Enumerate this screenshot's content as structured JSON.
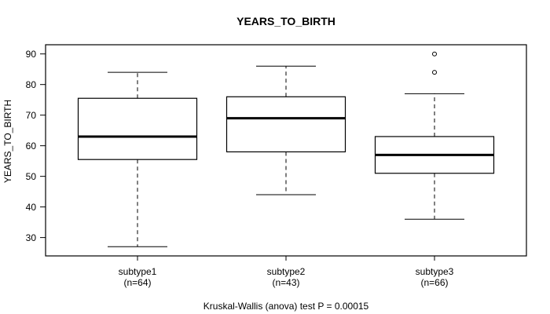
{
  "chart_data": {
    "type": "boxplot",
    "title": "YEARS_TO_BIRTH",
    "ylabel": "YEARS_TO_BIRTH",
    "xlabel": "",
    "caption": "Kruskal-Wallis (anova) test P = 0.00015",
    "ylim": [
      24,
      93
    ],
    "yticks": [
      30,
      40,
      50,
      60,
      70,
      80,
      90
    ],
    "grid": false,
    "legend": "none",
    "groups": [
      {
        "label": "subtype1",
        "sublabel": "(n=64)",
        "n": 64,
        "lower_whisker": 27,
        "q1": 55.5,
        "median": 63,
        "q3": 75.5,
        "upper_whisker": 84,
        "outliers": []
      },
      {
        "label": "subtype2",
        "sublabel": "(n=43)",
        "n": 43,
        "lower_whisker": 44,
        "q1": 58,
        "median": 69,
        "q3": 76,
        "upper_whisker": 86,
        "outliers": []
      },
      {
        "label": "subtype3",
        "sublabel": "(n=66)",
        "n": 66,
        "lower_whisker": 36,
        "q1": 51,
        "median": 57,
        "q3": 63,
        "upper_whisker": 77,
        "outliers": [
          84,
          90
        ]
      }
    ],
    "colors": {
      "stroke": "#000000",
      "box_fill": "#ffffff",
      "background": "#ffffff"
    }
  }
}
